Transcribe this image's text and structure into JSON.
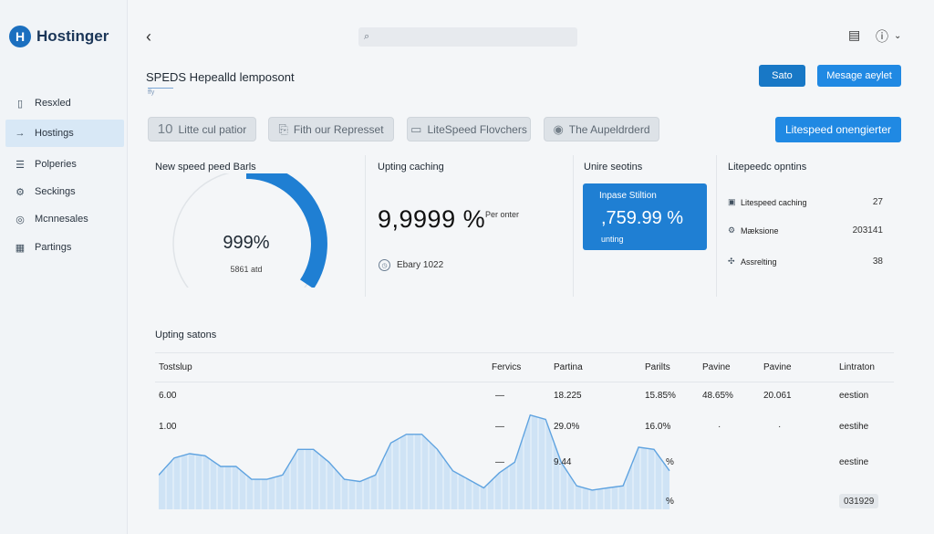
{
  "brand": {
    "logo_letter": "H",
    "name": "Hostinger"
  },
  "sidebar": {
    "items": [
      {
        "icon": "list-icon",
        "glyph": "▯",
        "label": "Resxled",
        "active": false
      },
      {
        "icon": "arrow-right-icon",
        "glyph": "→",
        "label": "Hostings",
        "active": true
      },
      {
        "icon": "menu-icon",
        "glyph": "☰",
        "label": "Polperies",
        "active": false
      },
      {
        "icon": "gear-icon",
        "glyph": "⚙",
        "label": "Seckings",
        "active": false
      },
      {
        "icon": "circle-icon",
        "glyph": "◎",
        "label": "Mcnnesales",
        "active": false
      },
      {
        "icon": "chart-icon",
        "glyph": "▦",
        "label": "Partings",
        "active": false
      }
    ]
  },
  "topbar": {
    "search_placeholder": "",
    "icons": [
      "document-icon",
      "alert-icon"
    ]
  },
  "header": {
    "title": "SPEDS Hepealld lemposont",
    "subtitle": "ffy",
    "save_label": "Sato",
    "message_label": "Mesage aeylet"
  },
  "chips": [
    {
      "icon": "10-icon",
      "glyph": "10",
      "label": "Litte cul patior"
    },
    {
      "icon": "link-icon",
      "glyph": "⎘",
      "label": "Fith our Represset"
    },
    {
      "icon": "box-icon",
      "glyph": "▭",
      "label": "LiteSpeed Flovchers"
    },
    {
      "icon": "user-icon",
      "glyph": "👤",
      "label": "The Aupeldrderd"
    }
  ],
  "litespeed_button": "Litespeed onengierter",
  "cards": {
    "speed": {
      "title": "New speed peed Barls",
      "value": "999%",
      "sub": "5861 atd",
      "fill_fraction": 0.55
    },
    "caching": {
      "title": "Upting caching",
      "value": "9,9999 %",
      "per": "Per onter",
      "footer": "Ebary 1022"
    },
    "unire": {
      "title": "Unire seotins",
      "label": "Inpase Stiltion",
      "value": ",759.99 %",
      "sub": "unting"
    },
    "litepeedc": {
      "title": "Litepeedc opntins",
      "rows": [
        {
          "icon": "cache-icon",
          "glyph": "▣",
          "label": "Litespeed caching",
          "value": "27"
        },
        {
          "icon": "gear-icon",
          "glyph": "⚙",
          "label": "Mæksione",
          "value": "203141"
        },
        {
          "icon": "plus-move-icon",
          "glyph": "✣",
          "label": "Assrelting",
          "value": "38"
        }
      ]
    }
  },
  "table": {
    "title": "Upting satons",
    "headers": [
      "Tostslup",
      "Fervics",
      "Partina",
      "Parilts",
      "Pavine",
      "Pavine",
      "Lintraton"
    ],
    "rows": [
      [
        "6.00",
        "—",
        "18.225",
        "15.85%",
        "48.65%",
        "20.061",
        "eestion"
      ],
      [
        "1.00",
        "—",
        "29.0%",
        "16.0%",
        "·",
        "·",
        "eestihe"
      ],
      [
        "",
        "—",
        "9.44",
        "%",
        "",
        "",
        "eestine"
      ],
      [
        "",
        "",
        "",
        "%",
        "",
        "",
        "031929"
      ]
    ]
  },
  "chart_data": {
    "type": "area",
    "title": "",
    "values": [
      6,
      14,
      16,
      15,
      10,
      10,
      4,
      4,
      6,
      18,
      18,
      12,
      4,
      3,
      6,
      21,
      25,
      25,
      18,
      8,
      4,
      0,
      7,
      12,
      34,
      32,
      12,
      1,
      -1,
      0,
      1,
      19,
      18,
      8
    ],
    "ylim": [
      -10,
      36
    ],
    "color": "#5fa3e0",
    "fill": "#cfe3f5"
  },
  "colors": {
    "accent": "#2089e3",
    "accent_dark": "#1878c6",
    "gauge": "#1f7fd3",
    "gauge_track": "#e0e4e8"
  }
}
